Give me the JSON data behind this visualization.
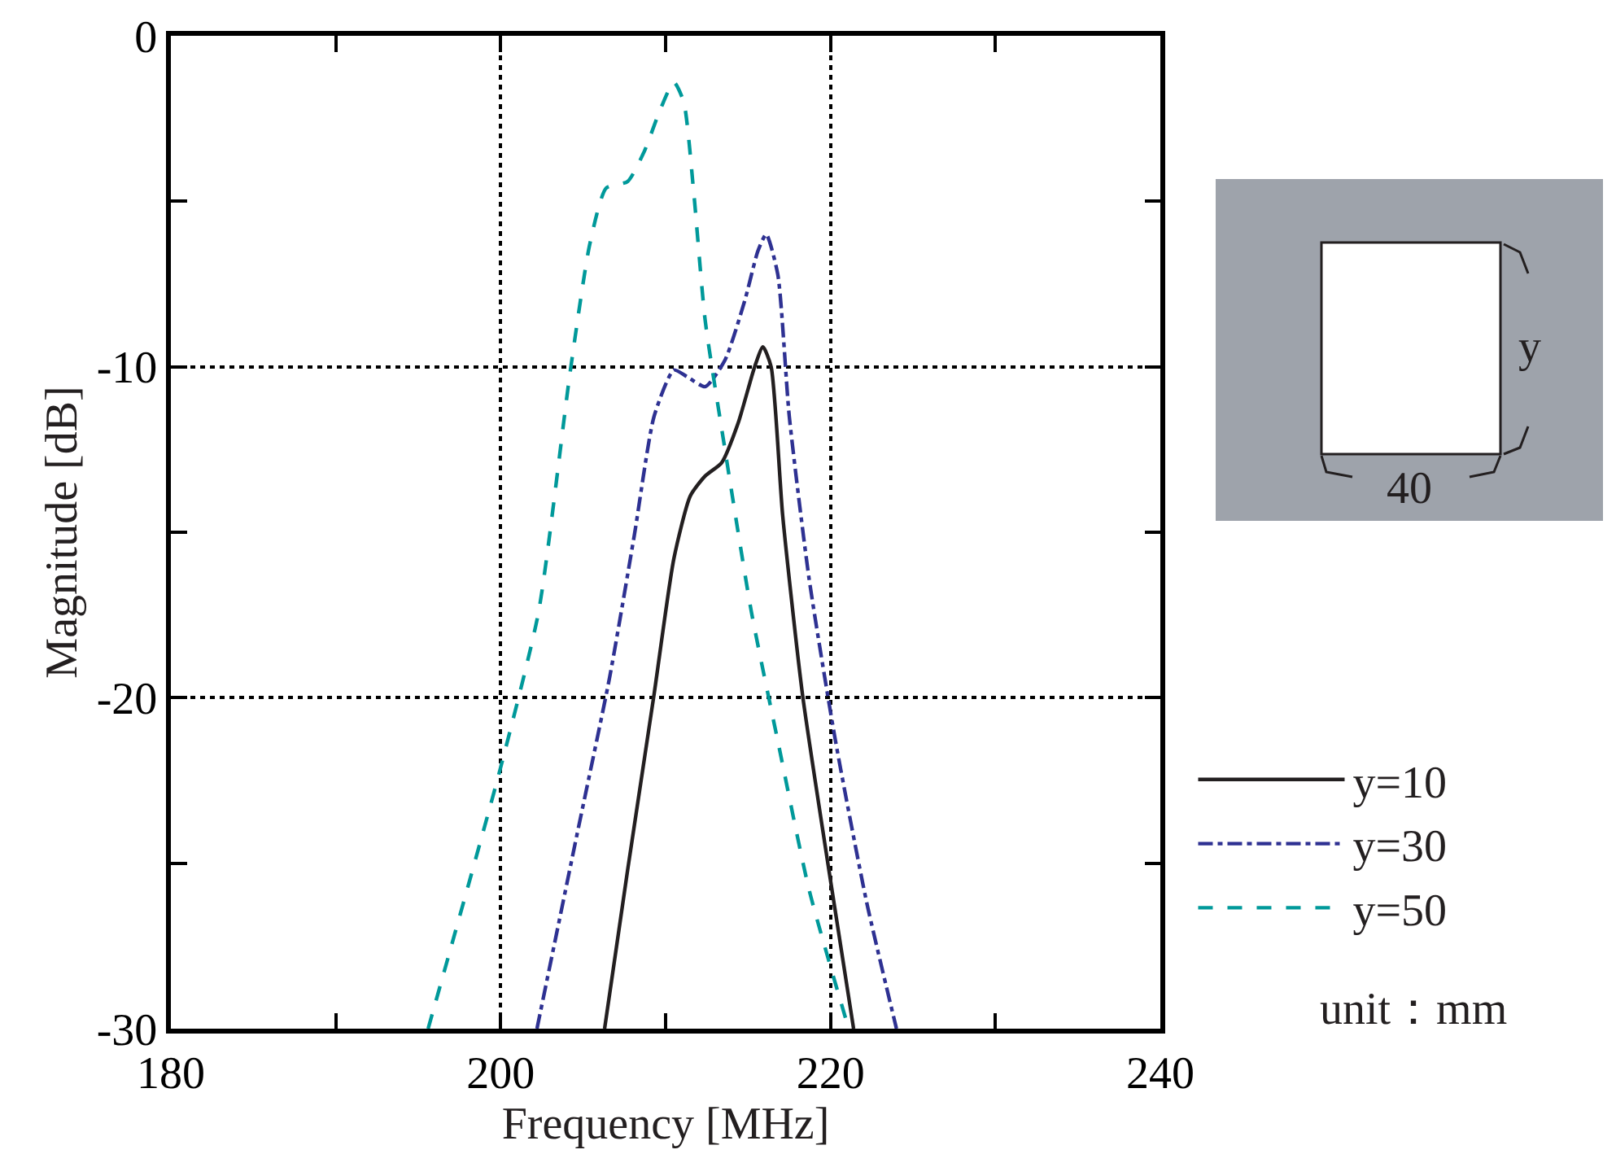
{
  "chart_data": {
    "type": "line",
    "xlabel": "Frequency [MHz]",
    "ylabel": "Magnitude [dB]",
    "xlim": [
      180,
      240
    ],
    "ylim": [
      -30,
      0
    ],
    "xticks": [
      180,
      {
        "value": 190,
        "label": null
      },
      200,
      {
        "value": 210,
        "label": null
      },
      220,
      {
        "value": 230,
        "label": null
      },
      240
    ],
    "yticks": [
      -30,
      {
        "value": -25,
        "label": null
      },
      -20,
      {
        "value": -15,
        "label": null
      },
      -10,
      {
        "value": -5,
        "label": null
      },
      0
    ],
    "grid": true,
    "legend": "bottom right",
    "marker": "none",
    "series": [
      {
        "name": "y=10",
        "color": "#231f20",
        "line_style": "solid",
        "x": [
          206.3,
          207.7,
          209.3,
          210.5,
          211.5,
          212.4,
          213.4,
          214.4,
          215.4,
          215.9,
          216.4,
          217.1,
          218.3,
          219.9,
          221.4
        ],
        "values": [
          -30,
          -25.2,
          -19.9,
          -15.8,
          -13.9,
          -13.3,
          -12.9,
          -11.7,
          -10.0,
          -9.4,
          -10.0,
          -14.5,
          -19.9,
          -25.2,
          -30
        ]
      },
      {
        "name": "y=30",
        "color": "#2e3192",
        "line_style": "dashdot",
        "x": [
          202.2,
          204.6,
          206.6,
          208.1,
          209.3,
          210.5,
          211.3,
          212.4,
          213.6,
          214.8,
          215.6,
          216.1,
          216.8,
          217.5,
          218.7,
          220.3,
          222.2,
          224.0
        ],
        "values": [
          -30,
          -24.2,
          -19.4,
          -15.1,
          -11.5,
          -10.1,
          -10.3,
          -10.6,
          -9.8,
          -8.0,
          -6.5,
          -6.0,
          -7.2,
          -11.5,
          -16.4,
          -21.3,
          -26.2,
          -30
        ]
      },
      {
        "name": "y=50",
        "color": "#00999a",
        "line_style": "dashed",
        "x": [
          195.6,
          200.0,
          202.3,
          204.2,
          205.4,
          206.4,
          207.7,
          208.7,
          209.7,
          210.5,
          211.1,
          211.7,
          212.4,
          213.6,
          215.2,
          216.8,
          218.7,
          221.1
        ],
        "values": [
          -30,
          -22.1,
          -17.4,
          -10.2,
          -6.3,
          -4.6,
          -4.4,
          -3.5,
          -2.2,
          -1.4,
          -2.0,
          -4.7,
          -8.6,
          -12.5,
          -17.4,
          -21.3,
          -25.8,
          -30
        ]
      }
    ],
    "annotations": [
      "y",
      "40",
      "unit：mm"
    ]
  }
}
